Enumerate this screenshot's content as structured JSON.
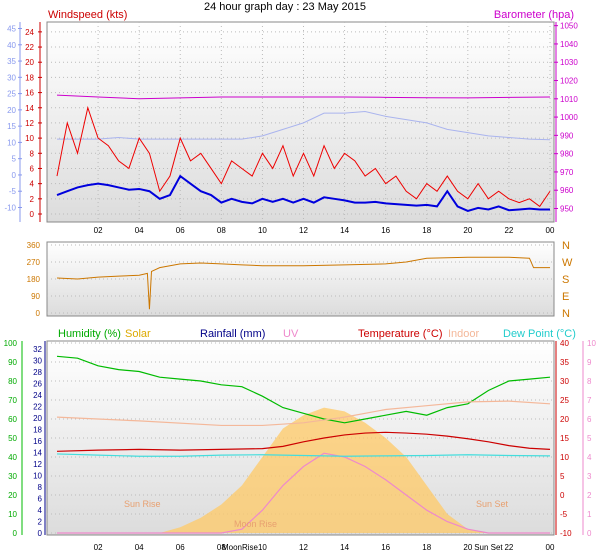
{
  "page_title": "24 hour graph day : 23 May 2015",
  "chart_data": [
    {
      "type": "line",
      "panel": "wind-barometer",
      "labels": {
        "left": "Windspeed (kts)",
        "right": "Barometer (hpa)"
      },
      "left_axis_ticks": [
        "24",
        "22",
        "20",
        "18",
        "16",
        "14",
        "12",
        "10",
        "8",
        "6",
        "4",
        "2",
        "0"
      ],
      "left_outer_ticks": [
        "45",
        "40",
        "35",
        "30",
        "25",
        "20",
        "15",
        "10",
        "5",
        "0",
        "-5",
        "-10"
      ],
      "right_axis_ticks": [
        "1050",
        "1040",
        "1030",
        "1020",
        "1010",
        "1000",
        "990",
        "980",
        "970",
        "960",
        "950"
      ],
      "x_ticks": [
        "02",
        "04",
        "06",
        "08",
        "10",
        "12",
        "14",
        "16",
        "18",
        "20",
        "22",
        "00"
      ],
      "ylim_wind": [
        0,
        25.3
      ],
      "ylim_pressure": [
        947,
        1052
      ],
      "ylim_outer_temp": [
        -12,
        47
      ],
      "series": [
        {
          "key": "barometer",
          "color": "#cc00cc",
          "x": [
            0,
            2,
            4,
            6,
            8,
            10,
            12,
            14,
            16,
            18,
            20,
            22,
            24
          ],
          "y": [
            1012,
            1011,
            1010,
            1010.5,
            1011,
            1011,
            1011,
            1011,
            1010.8,
            1010.6,
            1010.5,
            1010.8,
            1011
          ]
        },
        {
          "key": "temp-shadow",
          "color": "#aab4ee",
          "x": [
            0,
            1,
            2,
            3,
            4,
            5,
            6,
            7,
            8,
            9,
            10,
            11,
            12,
            13,
            14,
            15,
            16,
            17,
            18,
            19,
            20,
            21,
            22,
            23,
            24
          ],
          "y": [
            11,
            11,
            11,
            11.5,
            11,
            11,
            11,
            11,
            11,
            11,
            12,
            14,
            16,
            19,
            19,
            19.5,
            18,
            17,
            16,
            14,
            13,
            12,
            11.5,
            11,
            10.8
          ]
        },
        {
          "key": "gust",
          "color": "#ee0000",
          "x": [
            0,
            0.5,
            1,
            1.5,
            2,
            2.5,
            3,
            3.5,
            4,
            4.5,
            5,
            5.5,
            6,
            6.5,
            7,
            7.5,
            8,
            8.5,
            9,
            9.5,
            10,
            10.5,
            11,
            11.5,
            12,
            12.5,
            13,
            13.5,
            14,
            14.5,
            15,
            15.5,
            16,
            16.5,
            17,
            17.5,
            18,
            18.5,
            19,
            19.5,
            20,
            20.5,
            21,
            21.5,
            22,
            22.5,
            23,
            23.5,
            24
          ],
          "y": [
            5,
            12,
            8,
            14,
            10,
            9,
            7,
            6,
            10,
            8,
            3,
            5,
            10,
            7,
            8,
            6,
            4,
            7,
            6,
            5,
            8,
            6,
            9,
            5,
            8,
            5,
            9,
            6,
            8,
            7,
            5,
            6,
            4,
            5,
            3,
            2,
            4,
            3,
            5,
            3,
            2,
            4,
            2,
            3,
            2,
            1.5,
            2,
            1,
            3
          ]
        },
        {
          "key": "windspeed",
          "color": "#0000dd",
          "x": [
            0,
            0.5,
            1,
            1.5,
            2,
            2.5,
            3,
            3.5,
            4,
            4.5,
            5,
            5.5,
            6,
            6.5,
            7,
            7.5,
            8,
            8.5,
            9,
            9.5,
            10,
            10.5,
            11,
            11.5,
            12,
            12.5,
            13,
            13.5,
            14,
            14.5,
            15,
            15.5,
            16,
            16.5,
            17,
            17.5,
            18,
            18.5,
            19,
            19.5,
            20,
            20.5,
            21,
            21.5,
            22,
            22.5,
            23,
            23.5,
            24
          ],
          "y": [
            2.5,
            3,
            3.5,
            3.8,
            4,
            3.8,
            3.5,
            3.2,
            3.3,
            3,
            2,
            2.5,
            5,
            4,
            3,
            2.5,
            1.5,
            2,
            1.6,
            1.4,
            2,
            1.6,
            2,
            1.5,
            2,
            1.5,
            2.2,
            2,
            1.8,
            1.5,
            1.5,
            1.6,
            1.4,
            1.3,
            1.2,
            1.1,
            1.2,
            1,
            3,
            1,
            0.4,
            0.8,
            0.6,
            1,
            0.5,
            0.6,
            0.7,
            0.6,
            0.6
          ]
        }
      ]
    },
    {
      "type": "line",
      "panel": "wind-direction",
      "left_axis_ticks": [
        "360",
        "270",
        "180",
        "90",
        "0"
      ],
      "right_axis_ticks": [
        "N",
        "W",
        "S",
        "E",
        "N"
      ],
      "ylim": [
        0,
        360
      ],
      "series": [
        {
          "key": "direction",
          "color": "#cc7700",
          "x": [
            0,
            1,
            2,
            3,
            4,
            4.4,
            4.5,
            4.6,
            5,
            6,
            7,
            8,
            9,
            10,
            12,
            14,
            16,
            17,
            18,
            20,
            22,
            23,
            23.2,
            24
          ],
          "y": [
            185,
            180,
            190,
            195,
            200,
            210,
            20,
            220,
            240,
            260,
            265,
            260,
            255,
            250,
            250,
            255,
            260,
            270,
            290,
            295,
            295,
            290,
            240,
            240
          ]
        }
      ]
    },
    {
      "type": "line",
      "panel": "humidity-temperature",
      "labels": {
        "humidity": "Humidity (%)",
        "solar": "Solar",
        "rainfall": "Rainfall (mm)",
        "uv": "UV",
        "temperature": "Temperature (°C)",
        "indoor": "Indoor",
        "dewpoint": "Dew Point (°C)",
        "sunrise": "Sun Rise",
        "moonrise": "Moon Rise",
        "sunset": "Sun Set"
      },
      "left_outer_ticks": [
        "100",
        "90",
        "80",
        "70",
        "60",
        "50",
        "40",
        "30",
        "20",
        "10",
        "0"
      ],
      "left_inner_ticks": [
        "32",
        "30",
        "28",
        "26",
        "24",
        "22",
        "20",
        "18",
        "16",
        "14",
        "12",
        "10",
        "8",
        "6",
        "4",
        "2",
        "0"
      ],
      "right_inner_ticks": [
        "40",
        "35",
        "30",
        "25",
        "20",
        "15",
        "10",
        "5",
        "0",
        "-5",
        "-10"
      ],
      "right_outer_ticks": [
        "10",
        "9",
        "8",
        "7",
        "6",
        "5",
        "4",
        "3",
        "2",
        "1",
        "0"
      ],
      "x_ticks": [
        "02",
        "04",
        "06",
        "08",
        "MoonRise",
        "10",
        "12",
        "14",
        "16",
        "18",
        "20",
        "Sun Set",
        "22",
        "00"
      ],
      "ylim_humidity": [
        0,
        100
      ],
      "ylim_temp": [
        -10,
        40
      ],
      "series": [
        {
          "key": "solar",
          "color": "#ffc966",
          "x": [
            0,
            4,
            5,
            6,
            7,
            8,
            9,
            10,
            11,
            12,
            13,
            14,
            15,
            16,
            17,
            18,
            19,
            20,
            21,
            24
          ],
          "y": [
            0,
            0,
            0,
            3,
            8,
            15,
            25,
            40,
            55,
            62,
            66,
            64,
            58,
            50,
            40,
            25,
            10,
            2,
            0,
            0
          ]
        },
        {
          "key": "humidity",
          "color": "#00bb00",
          "x": [
            0,
            1,
            2,
            3,
            4,
            5,
            6,
            7,
            8,
            9,
            10,
            11,
            12,
            13,
            14,
            15,
            16,
            17,
            18,
            19,
            20,
            21,
            22,
            23,
            24
          ],
          "y": [
            93,
            92,
            88,
            86,
            85,
            82,
            81,
            80,
            78,
            77,
            72,
            66,
            63,
            60,
            58,
            60,
            62,
            64,
            62,
            66,
            68,
            75,
            80,
            81,
            82
          ]
        },
        {
          "key": "indoor",
          "color": "#f4b89a",
          "x": [
            0,
            4,
            8,
            10,
            12,
            14,
            16,
            18,
            20,
            22,
            24
          ],
          "y": [
            20.5,
            19.5,
            18.3,
            18.3,
            19,
            20.5,
            22.5,
            23.5,
            24.5,
            24.7,
            24
          ]
        },
        {
          "key": "temperature",
          "color": "#cc0000",
          "x": [
            0,
            2,
            4,
            6,
            8,
            10,
            11,
            12,
            13,
            14,
            15,
            16,
            17,
            18,
            19,
            20,
            21,
            22,
            23,
            24
          ],
          "y": [
            11.5,
            11.8,
            12,
            11.8,
            12,
            12.2,
            12.8,
            14,
            15,
            15.8,
            16.3,
            16.5,
            16.3,
            16,
            15.5,
            14.8,
            14,
            13,
            12.3,
            12
          ]
        },
        {
          "key": "uv",
          "color": "#ee88cc",
          "x": [
            0,
            5,
            7,
            8,
            9,
            10,
            11,
            12,
            13,
            14,
            15,
            16,
            17,
            18,
            19,
            20,
            21,
            24
          ],
          "y": [
            0,
            0,
            0,
            0,
            0.2,
            1.2,
            2.5,
            3.5,
            4.2,
            4,
            3.5,
            2.8,
            2,
            1.2,
            0.6,
            0.2,
            0,
            0
          ]
        },
        {
          "key": "dewpoint",
          "color": "#44dddd",
          "x": [
            0,
            2,
            4,
            6,
            8,
            10,
            12,
            14,
            16,
            18,
            20,
            22,
            24
          ],
          "y": [
            10.8,
            10.5,
            10.2,
            10.2,
            10.5,
            10.6,
            10.4,
            10.2,
            10.3,
            10.4,
            10.6,
            10.4,
            10.3
          ]
        }
      ]
    }
  ]
}
